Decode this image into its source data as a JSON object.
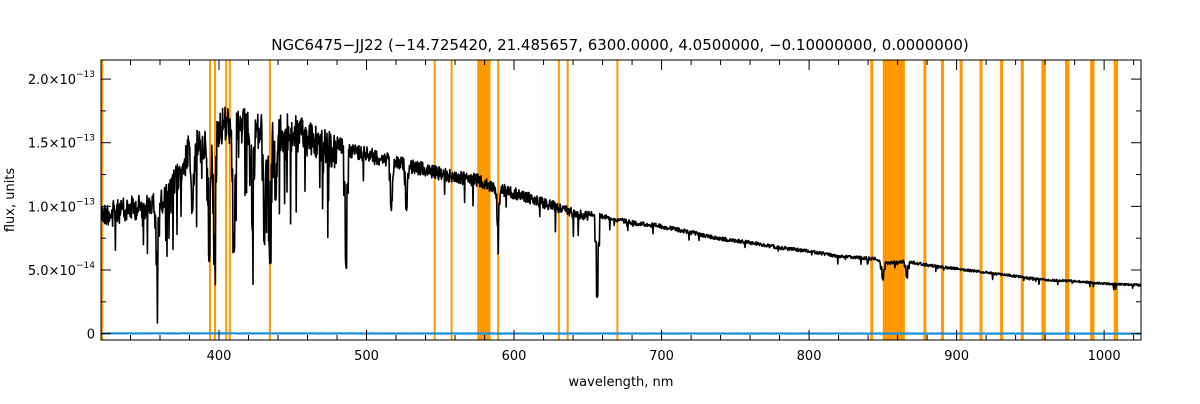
{
  "chart_data": {
    "type": "line",
    "title": "NGC6475−JJ22   (−14.725420, 21.485657, 6300.0000, 4.0500000, −0.10000000, 0.0000000)",
    "xlabel": "wavelength, nm",
    "ylabel": "flux, units",
    "xlim": [
      320,
      1025
    ],
    "ylim": [
      -5e-15,
      2.15e-13
    ],
    "x_ticks": [
      400,
      500,
      600,
      700,
      800,
      900,
      1000
    ],
    "x_tick_labels": [
      "400",
      "500",
      "600",
      "700",
      "800",
      "900",
      "1000"
    ],
    "y_ticks": [
      0,
      5e-14,
      1e-13,
      1.5e-13,
      2e-13
    ],
    "y_tick_mantissas": [
      "0",
      "5.0×10",
      "1.0×10",
      "1.5×10",
      "2.0×10"
    ],
    "y_tick_exponents": [
      "",
      "−14",
      "−13",
      "−13",
      "−13"
    ],
    "colors": {
      "spectrum": "#000000",
      "error": "#1f8fd8",
      "mask": "#ff9900",
      "axes": "#000000"
    },
    "masked_regions": [
      [
        320,
        321.5
      ],
      [
        393.2,
        394.2
      ],
      [
        396.6,
        397.6
      ],
      [
        404.2,
        405.2
      ],
      [
        406.6,
        407.6
      ],
      [
        433.8,
        434.8
      ],
      [
        545.5,
        546.5
      ],
      [
        557.0,
        558.0
      ],
      [
        575.0,
        584.0
      ],
      [
        588.6,
        589.6
      ],
      [
        629.7,
        630.7
      ],
      [
        635.7,
        636.7
      ],
      [
        669.4,
        670.4
      ],
      [
        841.5,
        843.5
      ],
      [
        850.0,
        865.0
      ],
      [
        877.5,
        879.5
      ],
      [
        889.5,
        891.5
      ],
      [
        902.0,
        904.0
      ],
      [
        915.5,
        917.5
      ],
      [
        929.5,
        931.5
      ],
      [
        943.5,
        945.5
      ],
      [
        957.5,
        960.5
      ],
      [
        973.5,
        976.5
      ],
      [
        990.5,
        993.5
      ],
      [
        1006.5,
        1009.5
      ]
    ],
    "series": [
      {
        "role": "spectrum",
        "x": [
          320,
          330,
          340,
          350,
          360,
          370,
          380,
          390,
          400,
          410,
          420,
          430,
          440,
          450,
          460,
          470,
          480,
          490,
          500,
          520,
          540,
          560,
          575,
          580,
          600,
          620,
          640,
          660,
          680,
          700,
          720,
          740,
          760,
          780,
          800,
          820,
          845,
          850,
          865,
          880,
          900,
          920,
          940,
          960,
          980,
          1000,
          1025
        ],
        "y": [
          1.02e-13,
          1.05e-13,
          1.08e-13,
          1.1e-13,
          1.12e-13,
          1.3e-13,
          1.58e-13,
          1.62e-13,
          1.78e-13,
          1.82e-13,
          1.75e-13,
          1.73e-13,
          1.74e-13,
          1.72e-13,
          1.68e-13,
          1.63e-13,
          1.55e-13,
          1.5e-13,
          1.47e-13,
          1.4e-13,
          1.34e-13,
          1.28e-13,
          1.26e-13,
          1.22e-13,
          1.15e-13,
          1.07e-13,
          9.9e-14,
          9.4e-14,
          8.9e-14,
          8.6e-14,
          8.1e-14,
          7.6e-14,
          7.3e-14,
          6.9e-14,
          6.6e-14,
          6.2e-14,
          6e-14,
          5.6e-14,
          5.8e-14,
          5.5e-14,
          5.2e-14,
          4.9e-14,
          4.6e-14,
          4.3e-14,
          4.2e-14,
          4e-14,
          3.9e-14
        ]
      },
      {
        "role": "error",
        "x": [
          320,
          400,
          500,
          600,
          700,
          800,
          900,
          1025
        ],
        "y": [
          2e-16,
          2e-16,
          1.5e-16,
          1e-16,
          1e-16,
          8e-17,
          6e-17,
          5e-17
        ]
      }
    ],
    "absorption_lines": [
      {
        "x": 358,
        "depth": 4.5e-14
      },
      {
        "x": 382,
        "depth": 5.5e-14
      },
      {
        "x": 393.4,
        "depth": 1e-13
      },
      {
        "x": 396.9,
        "depth": 9e-14
      },
      {
        "x": 410.2,
        "depth": 9e-14
      },
      {
        "x": 422.7,
        "depth": 7e-14
      },
      {
        "x": 430.8,
        "depth": 8e-14
      },
      {
        "x": 434.0,
        "depth": 9.5e-14
      },
      {
        "x": 438.4,
        "depth": 6e-14
      },
      {
        "x": 486.1,
        "depth": 9e-14
      },
      {
        "x": 516.9,
        "depth": 3.5e-14
      },
      {
        "x": 527.0,
        "depth": 3e-14
      },
      {
        "x": 589.0,
        "depth": 2.5e-14
      },
      {
        "x": 656.3,
        "depth": 6.3e-14
      },
      {
        "x": 850,
        "depth": 1.2e-14
      },
      {
        "x": 866.2,
        "depth": 1.2e-14
      }
    ]
  }
}
